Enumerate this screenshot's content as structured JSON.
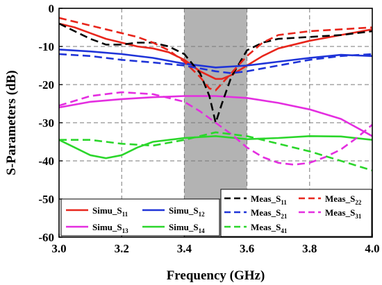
{
  "chart_data": {
    "type": "line",
    "xlabel": "Frequency (GHz)",
    "ylabel": "S-Parameters (dB)",
    "xlim": [
      3.0,
      4.0
    ],
    "ylim": [
      -60,
      0
    ],
    "xticks": [
      "3.0",
      "3.2",
      "3.4",
      "3.6",
      "3.8",
      "4.0"
    ],
    "yticks": [
      "0",
      "-10",
      "-20",
      "-30",
      "-40",
      "-50",
      "-60"
    ],
    "grid": true,
    "shaded_band": {
      "x_start": 3.4,
      "x_end": 3.6,
      "color": "#b3b3b3"
    },
    "series": [
      {
        "name": "Simu_S11",
        "label_main": "Simu_S",
        "label_sub": "11",
        "color": "#e8261c",
        "dash": false,
        "x": [
          3.0,
          3.05,
          3.1,
          3.15,
          3.2,
          3.25,
          3.3,
          3.35,
          3.4,
          3.45,
          3.5,
          3.52,
          3.55,
          3.6,
          3.65,
          3.7,
          3.8,
          3.9,
          4.0
        ],
        "y": [
          -4,
          -5,
          -6.5,
          -8,
          -9,
          -10,
          -10.5,
          -11.5,
          -13.5,
          -16.5,
          -18.5,
          -18.5,
          -17.5,
          -15,
          -12.5,
          -10.5,
          -8.5,
          -7,
          -5.5
        ]
      },
      {
        "name": "Simu_S12",
        "label_main": "Simu_S",
        "label_sub": "12",
        "color": "#1f34d8",
        "dash": false,
        "x": [
          3.0,
          3.1,
          3.2,
          3.3,
          3.4,
          3.5,
          3.6,
          3.7,
          3.8,
          3.9,
          4.0
        ],
        "y": [
          -10.8,
          -11.3,
          -12,
          -13,
          -14.5,
          -15.5,
          -15,
          -14,
          -13,
          -12.2,
          -12.5
        ]
      },
      {
        "name": "Simu_S13",
        "label_main": "Simu_S",
        "label_sub": "13",
        "color": "#e42ee0",
        "dash": false,
        "x": [
          3.0,
          3.1,
          3.2,
          3.3,
          3.4,
          3.5,
          3.6,
          3.7,
          3.8,
          3.9,
          4.0
        ],
        "y": [
          -26,
          -24.5,
          -23.8,
          -23.3,
          -23,
          -23,
          -23.5,
          -24.8,
          -26.5,
          -29,
          -33.5
        ]
      },
      {
        "name": "Simu_S14",
        "label_main": "Simu_S",
        "label_sub": "14",
        "color": "#2bd62b",
        "dash": false,
        "x": [
          3.0,
          3.05,
          3.1,
          3.15,
          3.2,
          3.25,
          3.3,
          3.4,
          3.5,
          3.6,
          3.7,
          3.8,
          3.9,
          4.0
        ],
        "y": [
          -34.5,
          -36.5,
          -38.5,
          -39.3,
          -38.5,
          -36.5,
          -35,
          -34,
          -33.5,
          -34.3,
          -34,
          -33.5,
          -33.6,
          -34.5
        ]
      },
      {
        "name": "Meas_S11",
        "label_main": "Meas_S",
        "label_sub": "11",
        "color": "#000000",
        "dash": true,
        "x": [
          3.0,
          3.05,
          3.1,
          3.15,
          3.2,
          3.25,
          3.3,
          3.35,
          3.4,
          3.45,
          3.48,
          3.5,
          3.52,
          3.55,
          3.6,
          3.65,
          3.7,
          3.8,
          3.9,
          4.0
        ],
        "y": [
          -4,
          -6,
          -8,
          -9.5,
          -9.5,
          -9,
          -9,
          -10,
          -12,
          -17,
          -23,
          -30,
          -25,
          -18,
          -11,
          -9,
          -8,
          -7.5,
          -7,
          -6
        ]
      },
      {
        "name": "Meas_S22",
        "label_main": "Meas_S",
        "label_sub": "22",
        "color": "#e8261c",
        "dash": true,
        "x": [
          3.0,
          3.05,
          3.1,
          3.15,
          3.2,
          3.25,
          3.3,
          3.35,
          3.4,
          3.45,
          3.48,
          3.5,
          3.55,
          3.6,
          3.65,
          3.7,
          3.8,
          3.9,
          4.0
        ],
        "y": [
          -2.5,
          -3.5,
          -4.5,
          -5.5,
          -6.5,
          -7.5,
          -9,
          -11,
          -14,
          -18,
          -21,
          -21.5,
          -17,
          -12.5,
          -9,
          -7,
          -6,
          -5.5,
          -5
        ]
      },
      {
        "name": "Meas_S21",
        "label_main": "Meas_S",
        "label_sub": "21",
        "color": "#1f34d8",
        "dash": true,
        "x": [
          3.0,
          3.1,
          3.2,
          3.3,
          3.4,
          3.5,
          3.55,
          3.6,
          3.7,
          3.8,
          3.9,
          4.0
        ],
        "y": [
          -12,
          -12.5,
          -13.5,
          -14.2,
          -15,
          -16.5,
          -17,
          -16.5,
          -15,
          -13.5,
          -12.5,
          -12
        ]
      },
      {
        "name": "Meas_S31",
        "label_main": "Meas_S",
        "label_sub": "31",
        "color": "#e42ee0",
        "dash": true,
        "x": [
          3.0,
          3.1,
          3.2,
          3.3,
          3.4,
          3.45,
          3.5,
          3.55,
          3.6,
          3.65,
          3.7,
          3.75,
          3.8,
          3.85,
          3.9,
          3.95,
          4.0
        ],
        "y": [
          -25.5,
          -23,
          -22,
          -22.5,
          -24.5,
          -27,
          -30,
          -33,
          -36.5,
          -39,
          -40.5,
          -41,
          -40.5,
          -39,
          -37,
          -34,
          -30.5
        ]
      },
      {
        "name": "Meas_S41",
        "label_main": "Meas_S",
        "label_sub": "41",
        "color": "#2bd62b",
        "dash": true,
        "x": [
          3.0,
          3.1,
          3.2,
          3.3,
          3.4,
          3.5,
          3.6,
          3.7,
          3.8,
          3.9,
          4.0
        ],
        "y": [
          -34.5,
          -34.5,
          -35.5,
          -36,
          -34.5,
          -32.5,
          -33.5,
          -35.5,
          -37.5,
          -40,
          -42.5
        ]
      }
    ],
    "legend_left": [
      "Simu_S11",
      "Simu_S12",
      "Simu_S13",
      "Simu_S14"
    ],
    "legend_right": [
      "Meas_S11",
      "Meas_S22",
      "Meas_S21",
      "Meas_S31",
      "Meas_S41"
    ],
    "legend_placement": "bottom"
  }
}
